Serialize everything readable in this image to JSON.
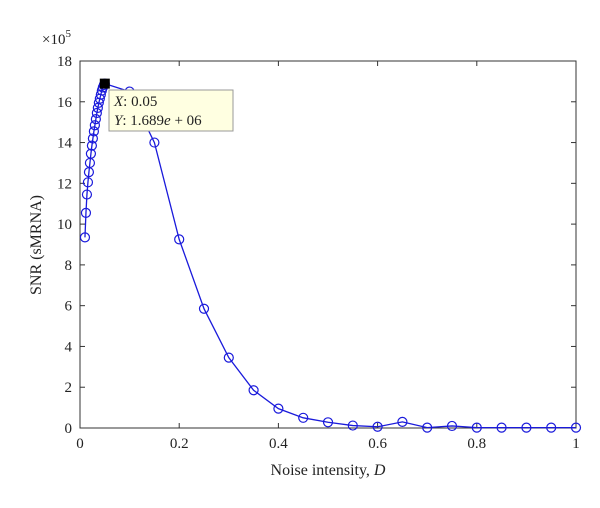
{
  "chart_data": {
    "type": "line",
    "xlabel_text": "Noise intensity, ",
    "xlabel_var": "D",
    "ylabel": "SNR (sMRNA)",
    "y_multiplier_base": "×10",
    "y_multiplier_exp": "5",
    "xlim": [
      0,
      1
    ],
    "ylim": [
      0,
      18
    ],
    "x_ticks": [
      "0",
      "0.2",
      "0.4",
      "0.6",
      "0.8",
      "1"
    ],
    "y_ticks": [
      "0",
      "2",
      "4",
      "6",
      "8",
      "10",
      "12",
      "14",
      "16",
      "18"
    ],
    "series": [
      {
        "color": "#1a1adb",
        "marker": "circle",
        "x": [
          0.01,
          0.012,
          0.014,
          0.016,
          0.018,
          0.02,
          0.022,
          0.024,
          0.026,
          0.028,
          0.03,
          0.032,
          0.034,
          0.036,
          0.038,
          0.04,
          0.042,
          0.044,
          0.046,
          0.048,
          0.05,
          0.1,
          0.15,
          0.2,
          0.25,
          0.3,
          0.35,
          0.4,
          0.45,
          0.5,
          0.55,
          0.6,
          0.65,
          0.7,
          0.75,
          0.8,
          0.85,
          0.9,
          0.95,
          1.0
        ],
        "y": [
          9.35,
          10.55,
          11.45,
          12.05,
          12.55,
          13.0,
          13.45,
          13.85,
          14.2,
          14.55,
          14.85,
          15.15,
          15.45,
          15.7,
          15.95,
          16.15,
          16.35,
          16.55,
          16.7,
          16.82,
          16.89,
          16.5,
          14.0,
          9.25,
          5.85,
          3.45,
          1.85,
          0.95,
          0.5,
          0.28,
          0.12,
          0.06,
          0.3,
          0.02,
          0.1,
          0.02,
          0.02,
          0.02,
          0.02,
          0.02
        ]
      }
    ],
    "datatip": {
      "x_var": "X",
      "x_value": ": 0.05",
      "y_var": "Y",
      "y_value_a": ": 1.689",
      "y_value_b": "e",
      "y_value_c": " + 06",
      "point": {
        "x": 0.05,
        "y": 16.89
      },
      "background": "#ffffe1"
    }
  }
}
